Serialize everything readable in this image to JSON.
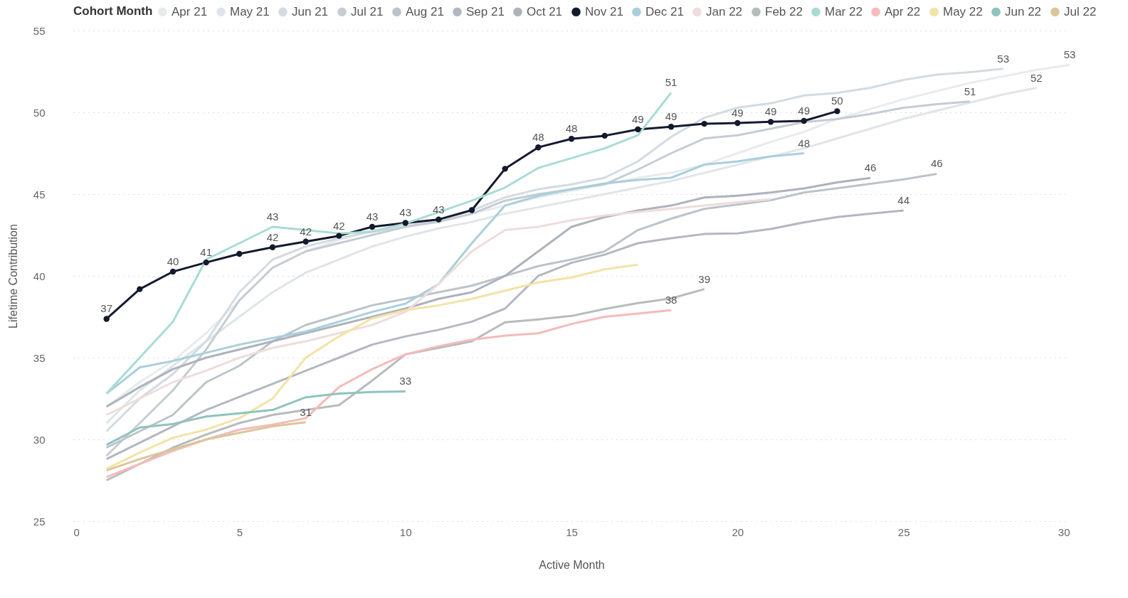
{
  "chart_data": {
    "type": "line",
    "xlabel": "Active Month",
    "ylabel": "Lifetime Contribution",
    "legend_title": "Cohort Month",
    "legend": "top",
    "grid": "y",
    "line_style": "solid",
    "xlim": [
      0,
      30
    ],
    "xticks": [
      0,
      5,
      10,
      15,
      20,
      25,
      30
    ],
    "ylim": [
      25,
      55
    ],
    "yticks": [
      25,
      30,
      35,
      40,
      45,
      50,
      55
    ],
    "x": [
      1,
      2,
      3,
      4,
      5,
      6,
      7,
      8,
      9,
      10,
      11,
      12,
      13,
      14,
      15,
      16,
      17,
      18,
      19,
      20,
      21,
      22,
      23,
      24,
      25,
      26,
      27,
      28,
      29,
      30
    ],
    "series": [
      {
        "name": "Apr 21",
        "color": "#e6ebee",
        "values": [
          32.0,
          33.5,
          34.8,
          36.5,
          38.5,
          40.5,
          41.5,
          42.2,
          42.8,
          43.1,
          43.4,
          43.8,
          44.3,
          44.8,
          45.2,
          45.6,
          46.0,
          46.3,
          46.8,
          47.5,
          48.2,
          48.8,
          49.6,
          50.2,
          50.8,
          51.3,
          51.8,
          52.2,
          52.6,
          52.9
        ],
        "value_labels": [
          null,
          null,
          null,
          null,
          null,
          null,
          null,
          null,
          null,
          null,
          null,
          null,
          null,
          null,
          null,
          null,
          null,
          null,
          null,
          null,
          null,
          null,
          null,
          null,
          null,
          null,
          null,
          null,
          null,
          "53"
        ]
      },
      {
        "name": "May 21",
        "color": "#dfe5ea",
        "values": [
          31.0,
          33.0,
          34.5,
          36.0,
          37.5,
          39.0,
          40.2,
          41.0,
          41.8,
          42.4,
          42.9,
          43.3,
          43.8,
          44.2,
          44.6,
          45.0,
          45.4,
          45.8,
          46.3,
          46.8,
          47.3,
          47.8,
          48.4,
          49.0,
          49.6,
          50.1,
          50.6,
          51.1,
          51.5,
          null
        ],
        "value_labels": [
          null,
          null,
          null,
          null,
          null,
          null,
          null,
          null,
          null,
          null,
          null,
          null,
          null,
          null,
          null,
          null,
          null,
          null,
          null,
          null,
          null,
          null,
          null,
          null,
          null,
          null,
          null,
          null,
          "52",
          null
        ]
      },
      {
        "name": "Jun 21",
        "color": "#d3dbe1",
        "values": [
          30.5,
          32.5,
          34.0,
          36.0,
          39.0,
          41.0,
          41.8,
          42.3,
          42.7,
          43.0,
          43.4,
          44.0,
          44.8,
          45.3,
          45.6,
          46.0,
          47.0,
          48.5,
          49.67,
          50.28,
          50.55,
          51.03,
          51.19,
          51.5,
          51.99,
          52.3,
          52.46,
          52.66,
          null,
          null
        ],
        "value_labels": [
          null,
          null,
          null,
          null,
          null,
          null,
          null,
          null,
          null,
          null,
          null,
          null,
          null,
          null,
          null,
          null,
          null,
          null,
          null,
          null,
          null,
          null,
          null,
          null,
          null,
          null,
          null,
          "53",
          null,
          null
        ]
      },
      {
        "name": "Jul 21",
        "color": "#c5ccd3",
        "values": [
          29.0,
          31.0,
          33.0,
          35.5,
          38.5,
          40.5,
          41.5,
          42.0,
          42.5,
          43.0,
          43.3,
          43.8,
          44.6,
          45.0,
          45.3,
          45.6,
          46.5,
          47.5,
          48.4,
          48.6,
          49.0,
          49.4,
          49.59,
          49.9,
          50.28,
          50.5,
          50.66,
          null,
          null,
          null
        ],
        "value_labels": [
          null,
          null,
          null,
          null,
          null,
          null,
          null,
          null,
          null,
          null,
          null,
          null,
          null,
          null,
          null,
          null,
          null,
          null,
          null,
          null,
          null,
          null,
          null,
          null,
          null,
          null,
          "51",
          null,
          null,
          null
        ]
      },
      {
        "name": "Aug 21",
        "color": "#bcc3ca",
        "values": [
          29.5,
          30.5,
          31.5,
          33.5,
          34.5,
          36.0,
          37.0,
          37.6,
          38.2,
          38.6,
          39.0,
          39.4,
          40.0,
          40.6,
          41.0,
          41.5,
          42.8,
          43.5,
          44.1,
          44.36,
          44.63,
          45.1,
          45.36,
          45.63,
          45.9,
          46.24,
          null,
          null,
          null,
          null
        ],
        "value_labels": [
          null,
          null,
          null,
          null,
          null,
          null,
          null,
          null,
          null,
          null,
          null,
          null,
          null,
          null,
          null,
          null,
          null,
          null,
          null,
          null,
          null,
          null,
          null,
          null,
          null,
          "46",
          null,
          null,
          null,
          null
        ]
      },
      {
        "name": "Sep 21",
        "color": "#b3b7c0",
        "values": [
          28.8,
          29.8,
          30.8,
          31.8,
          32.6,
          33.4,
          34.2,
          35.0,
          35.8,
          36.3,
          36.7,
          37.2,
          38.0,
          40.0,
          40.8,
          41.3,
          42.0,
          42.3,
          42.56,
          42.6,
          42.87,
          43.27,
          43.6,
          43.8,
          44.0,
          null,
          null,
          null,
          null,
          null
        ],
        "value_labels": [
          null,
          null,
          null,
          null,
          null,
          null,
          null,
          null,
          null,
          null,
          null,
          null,
          null,
          null,
          null,
          null,
          null,
          null,
          null,
          null,
          null,
          null,
          null,
          null,
          "44",
          null,
          null,
          null,
          null,
          null
        ]
      },
      {
        "name": "Oct 21",
        "color": "#aeb2bb",
        "values": [
          32.0,
          33.2,
          34.3,
          35.0,
          35.5,
          36.0,
          36.5,
          37.0,
          37.5,
          38.0,
          38.6,
          39.0,
          40.0,
          41.5,
          43.0,
          43.6,
          44.0,
          44.3,
          44.79,
          44.9,
          45.1,
          45.35,
          45.72,
          45.99,
          null,
          null,
          null,
          null,
          null,
          null
        ],
        "value_labels": [
          null,
          null,
          null,
          null,
          null,
          null,
          null,
          null,
          null,
          null,
          null,
          null,
          null,
          null,
          null,
          null,
          null,
          null,
          null,
          null,
          null,
          null,
          null,
          "46",
          null,
          null,
          null,
          null,
          null,
          null
        ]
      },
      {
        "name": "Nov 21",
        "color": "#141a2e",
        "marker": "circle",
        "values": [
          37.37,
          39.19,
          40.26,
          40.82,
          41.35,
          41.75,
          42.1,
          42.45,
          43.0,
          43.24,
          43.45,
          44.02,
          46.55,
          47.86,
          48.38,
          48.57,
          48.96,
          49.12,
          49.3,
          49.35,
          49.42,
          49.48,
          50.07,
          null,
          null,
          null,
          null,
          null,
          null,
          null
        ],
        "value_labels": [
          "37",
          null,
          "40",
          "41",
          null,
          "42",
          "42",
          "42",
          "43",
          "43",
          "43",
          null,
          null,
          "48",
          "48",
          null,
          "49",
          "49",
          null,
          "49",
          "49",
          "49",
          "50",
          null,
          null,
          null,
          null,
          null,
          null,
          null
        ]
      },
      {
        "name": "Dec 21",
        "color": "#a9cfdc",
        "values": [
          32.8,
          34.4,
          34.8,
          35.3,
          35.8,
          36.2,
          36.6,
          37.2,
          37.8,
          38.3,
          39.5,
          42.0,
          44.3,
          44.9,
          45.3,
          45.65,
          45.87,
          46.0,
          46.8,
          47.0,
          47.3,
          47.5,
          null,
          null,
          null,
          null,
          null,
          null,
          null,
          null
        ],
        "value_labels": [
          null,
          null,
          null,
          null,
          null,
          null,
          null,
          null,
          null,
          null,
          null,
          null,
          null,
          null,
          null,
          null,
          null,
          null,
          null,
          null,
          null,
          "48",
          null,
          null,
          null,
          null,
          null,
          null,
          null,
          null
        ]
      },
      {
        "name": "Jan 22",
        "color": "#efdcdc",
        "values": [
          31.5,
          32.5,
          33.5,
          34.2,
          35.0,
          35.6,
          36.0,
          36.5,
          37.0,
          37.8,
          39.5,
          41.5,
          42.8,
          43.0,
          43.4,
          43.7,
          43.9,
          44.1,
          44.3,
          44.5,
          44.7,
          null,
          null,
          null,
          null,
          null,
          null,
          null,
          null,
          null
        ]
      },
      {
        "name": "Feb 22",
        "color": "#b6bcbc",
        "values": [
          27.5,
          28.5,
          29.5,
          30.3,
          31.0,
          31.5,
          31.8,
          32.1,
          33.6,
          35.2,
          35.6,
          36.0,
          37.16,
          37.34,
          37.55,
          37.98,
          38.34,
          38.62,
          39.19,
          null,
          null,
          null,
          null,
          null,
          null,
          null,
          null,
          null,
          null,
          null
        ],
        "value_labels": [
          null,
          null,
          null,
          null,
          null,
          null,
          null,
          null,
          null,
          null,
          null,
          null,
          null,
          null,
          null,
          null,
          null,
          null,
          "39",
          null,
          null,
          null,
          null,
          null,
          null,
          null,
          null,
          null,
          null,
          null
        ]
      },
      {
        "name": "Mar 22",
        "color": "#a8dcd3",
        "values": [
          32.8,
          35.0,
          37.2,
          41.0,
          42.0,
          43.0,
          42.8,
          42.6,
          42.7,
          43.2,
          43.9,
          44.6,
          45.4,
          46.6,
          47.2,
          47.8,
          48.6,
          51.2,
          null,
          null,
          null,
          null,
          null,
          null,
          null,
          null,
          null,
          null,
          null,
          null
        ],
        "value_labels": [
          null,
          null,
          null,
          null,
          null,
          "43",
          null,
          null,
          null,
          null,
          null,
          null,
          null,
          null,
          null,
          null,
          null,
          "51",
          null,
          null,
          null,
          null,
          null,
          null,
          null,
          null,
          null,
          null,
          null,
          null
        ]
      },
      {
        "name": "Apr 22",
        "color": "#f5baba",
        "values": [
          27.7,
          28.5,
          29.3,
          30.0,
          30.6,
          30.9,
          31.3,
          33.2,
          34.3,
          35.2,
          35.7,
          36.1,
          36.35,
          36.49,
          37.06,
          37.5,
          37.7,
          37.9,
          null,
          null,
          null,
          null,
          null,
          null,
          null,
          null,
          null,
          null,
          null,
          null
        ],
        "value_labels": [
          null,
          null,
          null,
          null,
          null,
          null,
          null,
          null,
          null,
          null,
          null,
          null,
          null,
          null,
          null,
          null,
          null,
          "38",
          null,
          null,
          null,
          null,
          null,
          null,
          null,
          null,
          null,
          null,
          null,
          null
        ]
      },
      {
        "name": "May 22",
        "color": "#f3e3a6",
        "values": [
          28.2,
          29.2,
          30.1,
          30.6,
          31.3,
          32.5,
          35.0,
          36.3,
          37.4,
          37.9,
          38.2,
          38.6,
          39.1,
          39.6,
          39.9,
          40.4,
          40.68,
          null,
          null,
          null,
          null,
          null,
          null,
          null,
          null,
          null,
          null,
          null,
          null,
          null
        ]
      },
      {
        "name": "Jun 22",
        "color": "#8fc4bb",
        "values": [
          29.67,
          30.73,
          30.95,
          31.4,
          31.6,
          31.8,
          32.58,
          32.8,
          32.9,
          32.94,
          null,
          null,
          null,
          null,
          null,
          null,
          null,
          null,
          null,
          null,
          null,
          null,
          null,
          null,
          null,
          null,
          null,
          null,
          null,
          null
        ],
        "value_labels": [
          null,
          null,
          null,
          null,
          null,
          null,
          null,
          null,
          null,
          "33",
          null,
          null,
          null,
          null,
          null,
          null,
          null,
          null,
          null,
          null,
          null,
          null,
          null,
          null,
          null,
          null,
          null,
          null,
          null,
          null
        ]
      },
      {
        "name": "Jul 22",
        "color": "#d8c79a",
        "values": [
          28.1,
          28.8,
          29.4,
          30.0,
          30.4,
          30.8,
          31.05,
          null,
          null,
          null,
          null,
          null,
          null,
          null,
          null,
          null,
          null,
          null,
          null,
          null,
          null,
          null,
          null,
          null,
          null,
          null,
          null,
          null,
          null,
          null
        ],
        "value_labels": [
          null,
          null,
          null,
          null,
          null,
          null,
          "31",
          null,
          null,
          null,
          null,
          null,
          null,
          null,
          null,
          null,
          null,
          null,
          null,
          null,
          null,
          null,
          null,
          null,
          null,
          null,
          null,
          null,
          null,
          null
        ]
      }
    ]
  }
}
